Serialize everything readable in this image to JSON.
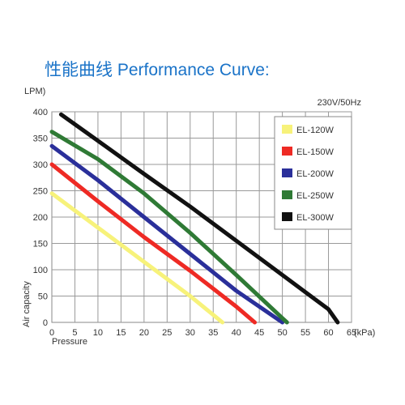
{
  "chart_data": {
    "type": "line",
    "title": "性能曲线 Performance Curve:",
    "subtitle": "230V/50Hz",
    "xlabel": "Pressure",
    "ylabel": "Air capacity",
    "y_unit": "LPM)",
    "x_unit": "(kPa)",
    "xlim": [
      0,
      65
    ],
    "ylim": [
      0,
      400
    ],
    "x_ticks": [
      0,
      5,
      10,
      15,
      20,
      25,
      30,
      35,
      40,
      45,
      50,
      55,
      60,
      65
    ],
    "y_ticks": [
      0,
      50,
      100,
      150,
      200,
      250,
      300,
      350,
      400
    ],
    "grid": true,
    "legend_position": "top-right",
    "series": [
      {
        "name": "EL-120W",
        "color": "#f7f27a",
        "x": [
          0,
          10,
          20,
          30,
          37
        ],
        "y": [
          245,
          180,
          115,
          50,
          0
        ]
      },
      {
        "name": "EL-150W",
        "color": "#ee2a24",
        "x": [
          0,
          10,
          20,
          30,
          40,
          44
        ],
        "y": [
          300,
          230,
          162,
          98,
          30,
          0
        ]
      },
      {
        "name": "EL-200W",
        "color": "#2a2f9a",
        "x": [
          0,
          10,
          20,
          30,
          40,
          50
        ],
        "y": [
          335,
          270,
          200,
          130,
          60,
          0
        ]
      },
      {
        "name": "EL-250W",
        "color": "#2f7a35",
        "x": [
          0,
          10,
          20,
          30,
          40,
          50,
          51
        ],
        "y": [
          362,
          310,
          245,
          170,
          90,
          8,
          0
        ]
      },
      {
        "name": "EL-300W",
        "color": "#111111",
        "x": [
          2,
          10,
          20,
          30,
          40,
          50,
          60,
          62
        ],
        "y": [
          395,
          345,
          282,
          220,
          155,
          90,
          25,
          0
        ]
      }
    ]
  }
}
